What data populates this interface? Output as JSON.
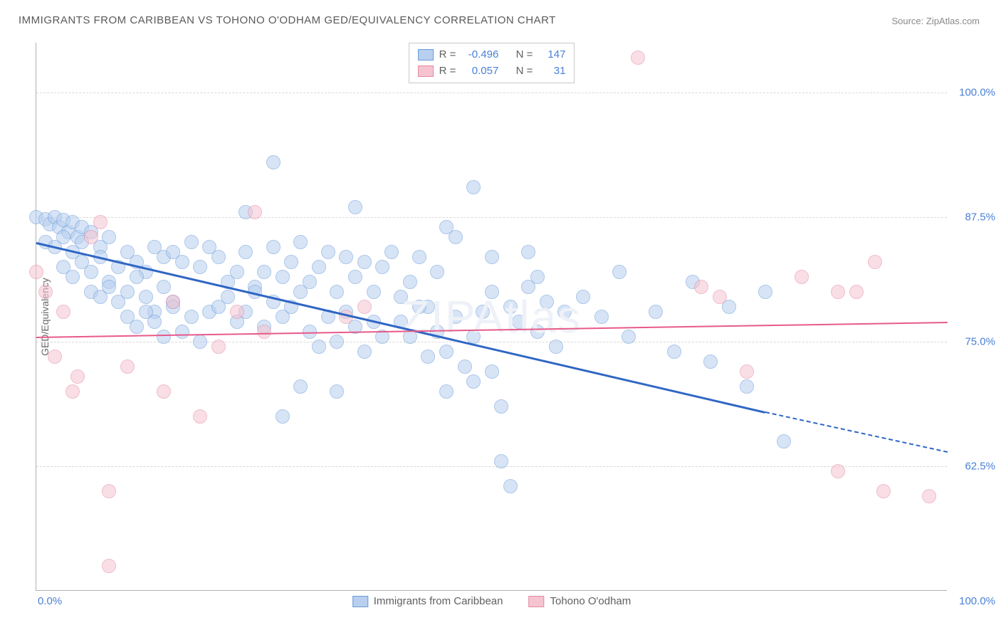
{
  "title": "IMMIGRANTS FROM CARIBBEAN VS TOHONO O'ODHAM GED/EQUIVALENCY CORRELATION CHART",
  "source": "Source: ZipAtlas.com",
  "watermark": "ZIPAtlas",
  "chart": {
    "type": "scatter",
    "background_color": "#ffffff",
    "grid_color": "#d8d8d8",
    "axis_color": "#b0b0b0",
    "text_color": "#6a6a6a",
    "tick_label_color": "#4a80d6",
    "y_label": "GED/Equivalency",
    "label_fontsize": 14,
    "tick_fontsize": 15,
    "xlim": [
      0,
      100
    ],
    "ylim": [
      50,
      105
    ],
    "x_ticks": [
      {
        "v": 0,
        "label": "0.0%"
      },
      {
        "v": 100,
        "label": "100.0%"
      }
    ],
    "y_ticks": [
      {
        "v": 62.5,
        "label": "62.5%"
      },
      {
        "v": 75.0,
        "label": "75.0%"
      },
      {
        "v": 87.5,
        "label": "87.5%"
      },
      {
        "v": 100.0,
        "label": "100.0%"
      }
    ],
    "marker_radius": 10,
    "marker_border_width": 1,
    "series": [
      {
        "name": "Immigrants from Caribbean",
        "key": "caribbean",
        "fill": "#b8cff0",
        "fill_opacity": 0.55,
        "stroke": "#6a9bd8",
        "line_color": "#2f66c4",
        "line_width": 3,
        "R": "-0.496",
        "N": "147",
        "trend": {
          "x1": 0,
          "y1": 85.0,
          "x2": 80,
          "y2": 68.0,
          "dash_to_x": 100,
          "dash_to_y": 64.0
        },
        "points": [
          [
            0,
            87.5
          ],
          [
            1,
            87.3
          ],
          [
            1.5,
            86.8
          ],
          [
            2,
            87.5
          ],
          [
            2.5,
            86.5
          ],
          [
            3,
            87.2
          ],
          [
            3.5,
            86.0
          ],
          [
            4,
            87.0
          ],
          [
            4.5,
            85.5
          ],
          [
            5,
            86.5
          ],
          [
            1,
            85.0
          ],
          [
            2,
            84.5
          ],
          [
            3,
            85.5
          ],
          [
            4,
            84.0
          ],
          [
            5,
            85.0
          ],
          [
            6,
            86.0
          ],
          [
            7,
            84.5
          ],
          [
            8,
            85.5
          ],
          [
            3,
            82.5
          ],
          [
            4,
            81.5
          ],
          [
            5,
            83.0
          ],
          [
            6,
            82.0
          ],
          [
            7,
            83.5
          ],
          [
            8,
            81.0
          ],
          [
            9,
            82.5
          ],
          [
            10,
            84.0
          ],
          [
            11,
            83.0
          ],
          [
            12,
            82.0
          ],
          [
            13,
            84.5
          ],
          [
            14,
            83.5
          ],
          [
            6,
            80.0
          ],
          [
            7,
            79.5
          ],
          [
            8,
            80.5
          ],
          [
            9,
            79.0
          ],
          [
            10,
            80.0
          ],
          [
            11,
            81.5
          ],
          [
            12,
            79.5
          ],
          [
            13,
            78.0
          ],
          [
            14,
            80.5
          ],
          [
            15,
            79.0
          ],
          [
            10,
            77.5
          ],
          [
            11,
            76.5
          ],
          [
            12,
            78.0
          ],
          [
            13,
            77.0
          ],
          [
            14,
            75.5
          ],
          [
            15,
            78.5
          ],
          [
            16,
            76.0
          ],
          [
            17,
            77.5
          ],
          [
            18,
            75.0
          ],
          [
            19,
            78.0
          ],
          [
            15,
            84.0
          ],
          [
            16,
            83.0
          ],
          [
            17,
            85.0
          ],
          [
            18,
            82.5
          ],
          [
            19,
            84.5
          ],
          [
            20,
            83.5
          ],
          [
            21,
            81.0
          ],
          [
            22,
            82.0
          ],
          [
            23,
            84.0
          ],
          [
            24,
            80.5
          ],
          [
            20,
            78.5
          ],
          [
            21,
            79.5
          ],
          [
            22,
            77.0
          ],
          [
            23,
            78.0
          ],
          [
            24,
            80.0
          ],
          [
            25,
            76.5
          ],
          [
            26,
            79.0
          ],
          [
            27,
            77.5
          ],
          [
            28,
            78.5
          ],
          [
            29,
            80.0
          ],
          [
            25,
            82.0
          ],
          [
            26,
            84.5
          ],
          [
            27,
            81.5
          ],
          [
            28,
            83.0
          ],
          [
            29,
            85.0
          ],
          [
            30,
            81.0
          ],
          [
            31,
            82.5
          ],
          [
            32,
            84.0
          ],
          [
            33,
            80.0
          ],
          [
            34,
            83.5
          ],
          [
            26,
            93.0
          ],
          [
            30,
            76.0
          ],
          [
            31,
            74.5
          ],
          [
            32,
            77.5
          ],
          [
            33,
            75.0
          ],
          [
            34,
            78.0
          ],
          [
            35,
            76.5
          ],
          [
            36,
            74.0
          ],
          [
            37,
            77.0
          ],
          [
            38,
            75.5
          ],
          [
            35,
            81.5
          ],
          [
            36,
            83.0
          ],
          [
            37,
            80.0
          ],
          [
            38,
            82.5
          ],
          [
            39,
            84.0
          ],
          [
            40,
            79.5
          ],
          [
            41,
            81.0
          ],
          [
            42,
            83.5
          ],
          [
            43,
            78.5
          ],
          [
            44,
            82.0
          ],
          [
            40,
            77.0
          ],
          [
            41,
            75.5
          ],
          [
            42,
            78.5
          ],
          [
            43,
            73.5
          ],
          [
            44,
            76.0
          ],
          [
            45,
            74.0
          ],
          [
            46,
            77.5
          ],
          [
            47,
            72.5
          ],
          [
            48,
            75.5
          ],
          [
            49,
            78.0
          ],
          [
            45,
            86.5
          ],
          [
            48,
            90.5
          ],
          [
            50,
            80.0
          ],
          [
            51,
            68.5
          ],
          [
            52,
            78.5
          ],
          [
            53,
            77.0
          ],
          [
            54,
            80.5
          ],
          [
            55,
            76.0
          ],
          [
            56,
            79.0
          ],
          [
            57,
            74.5
          ],
          [
            50,
            72.0
          ],
          [
            51,
            63.0
          ],
          [
            55,
            81.5
          ],
          [
            58,
            78.0
          ],
          [
            60,
            79.5
          ],
          [
            62,
            77.5
          ],
          [
            64,
            82.0
          ],
          [
            65,
            75.5
          ],
          [
            68,
            78.0
          ],
          [
            70,
            74.0
          ],
          [
            23,
            88.0
          ],
          [
            27,
            67.5
          ],
          [
            29,
            70.5
          ],
          [
            33,
            70.0
          ],
          [
            35,
            88.5
          ],
          [
            45,
            70.0
          ],
          [
            48,
            71.0
          ],
          [
            52,
            60.5
          ],
          [
            72,
            81.0
          ],
          [
            74,
            73.0
          ],
          [
            76,
            78.5
          ],
          [
            78,
            70.5
          ],
          [
            80,
            80.0
          ],
          [
            82,
            65.0
          ],
          [
            46,
            85.5
          ],
          [
            50,
            83.5
          ],
          [
            54,
            84.0
          ]
        ]
      },
      {
        "name": "Tohono O'odham",
        "key": "tohono",
        "fill": "#f5c4d0",
        "fill_opacity": 0.55,
        "stroke": "#e38aa3",
        "line_color": "#e75a8a",
        "line_width": 2.5,
        "R": "0.057",
        "N": "31",
        "trend": {
          "x1": 0,
          "y1": 75.5,
          "x2": 100,
          "y2": 77.0
        },
        "points": [
          [
            0,
            82.0
          ],
          [
            1,
            80.0
          ],
          [
            2,
            73.5
          ],
          [
            3,
            78.0
          ],
          [
            4.5,
            71.5
          ],
          [
            4,
            70.0
          ],
          [
            6,
            85.5
          ],
          [
            8,
            60.0
          ],
          [
            7,
            87.0
          ],
          [
            8,
            52.5
          ],
          [
            10,
            72.5
          ],
          [
            14,
            70.0
          ],
          [
            15,
            79.0
          ],
          [
            18,
            67.5
          ],
          [
            20,
            74.5
          ],
          [
            22,
            78.0
          ],
          [
            24,
            88.0
          ],
          [
            25,
            76.0
          ],
          [
            34,
            77.5
          ],
          [
            36,
            78.5
          ],
          [
            66,
            103.5
          ],
          [
            73,
            80.5
          ],
          [
            75,
            79.5
          ],
          [
            78,
            72.0
          ],
          [
            84,
            81.5
          ],
          [
            88,
            62.0
          ],
          [
            90,
            80.0
          ],
          [
            92,
            83.0
          ],
          [
            93,
            60.0
          ],
          [
            98,
            59.5
          ],
          [
            88,
            80.0
          ]
        ]
      }
    ],
    "legend_labels": {
      "R": "R =",
      "N": "N ="
    },
    "bottom_legend": [
      {
        "key": "caribbean",
        "label": "Immigrants from Caribbean"
      },
      {
        "key": "tohono",
        "label": "Tohono O'odham"
      }
    ]
  }
}
